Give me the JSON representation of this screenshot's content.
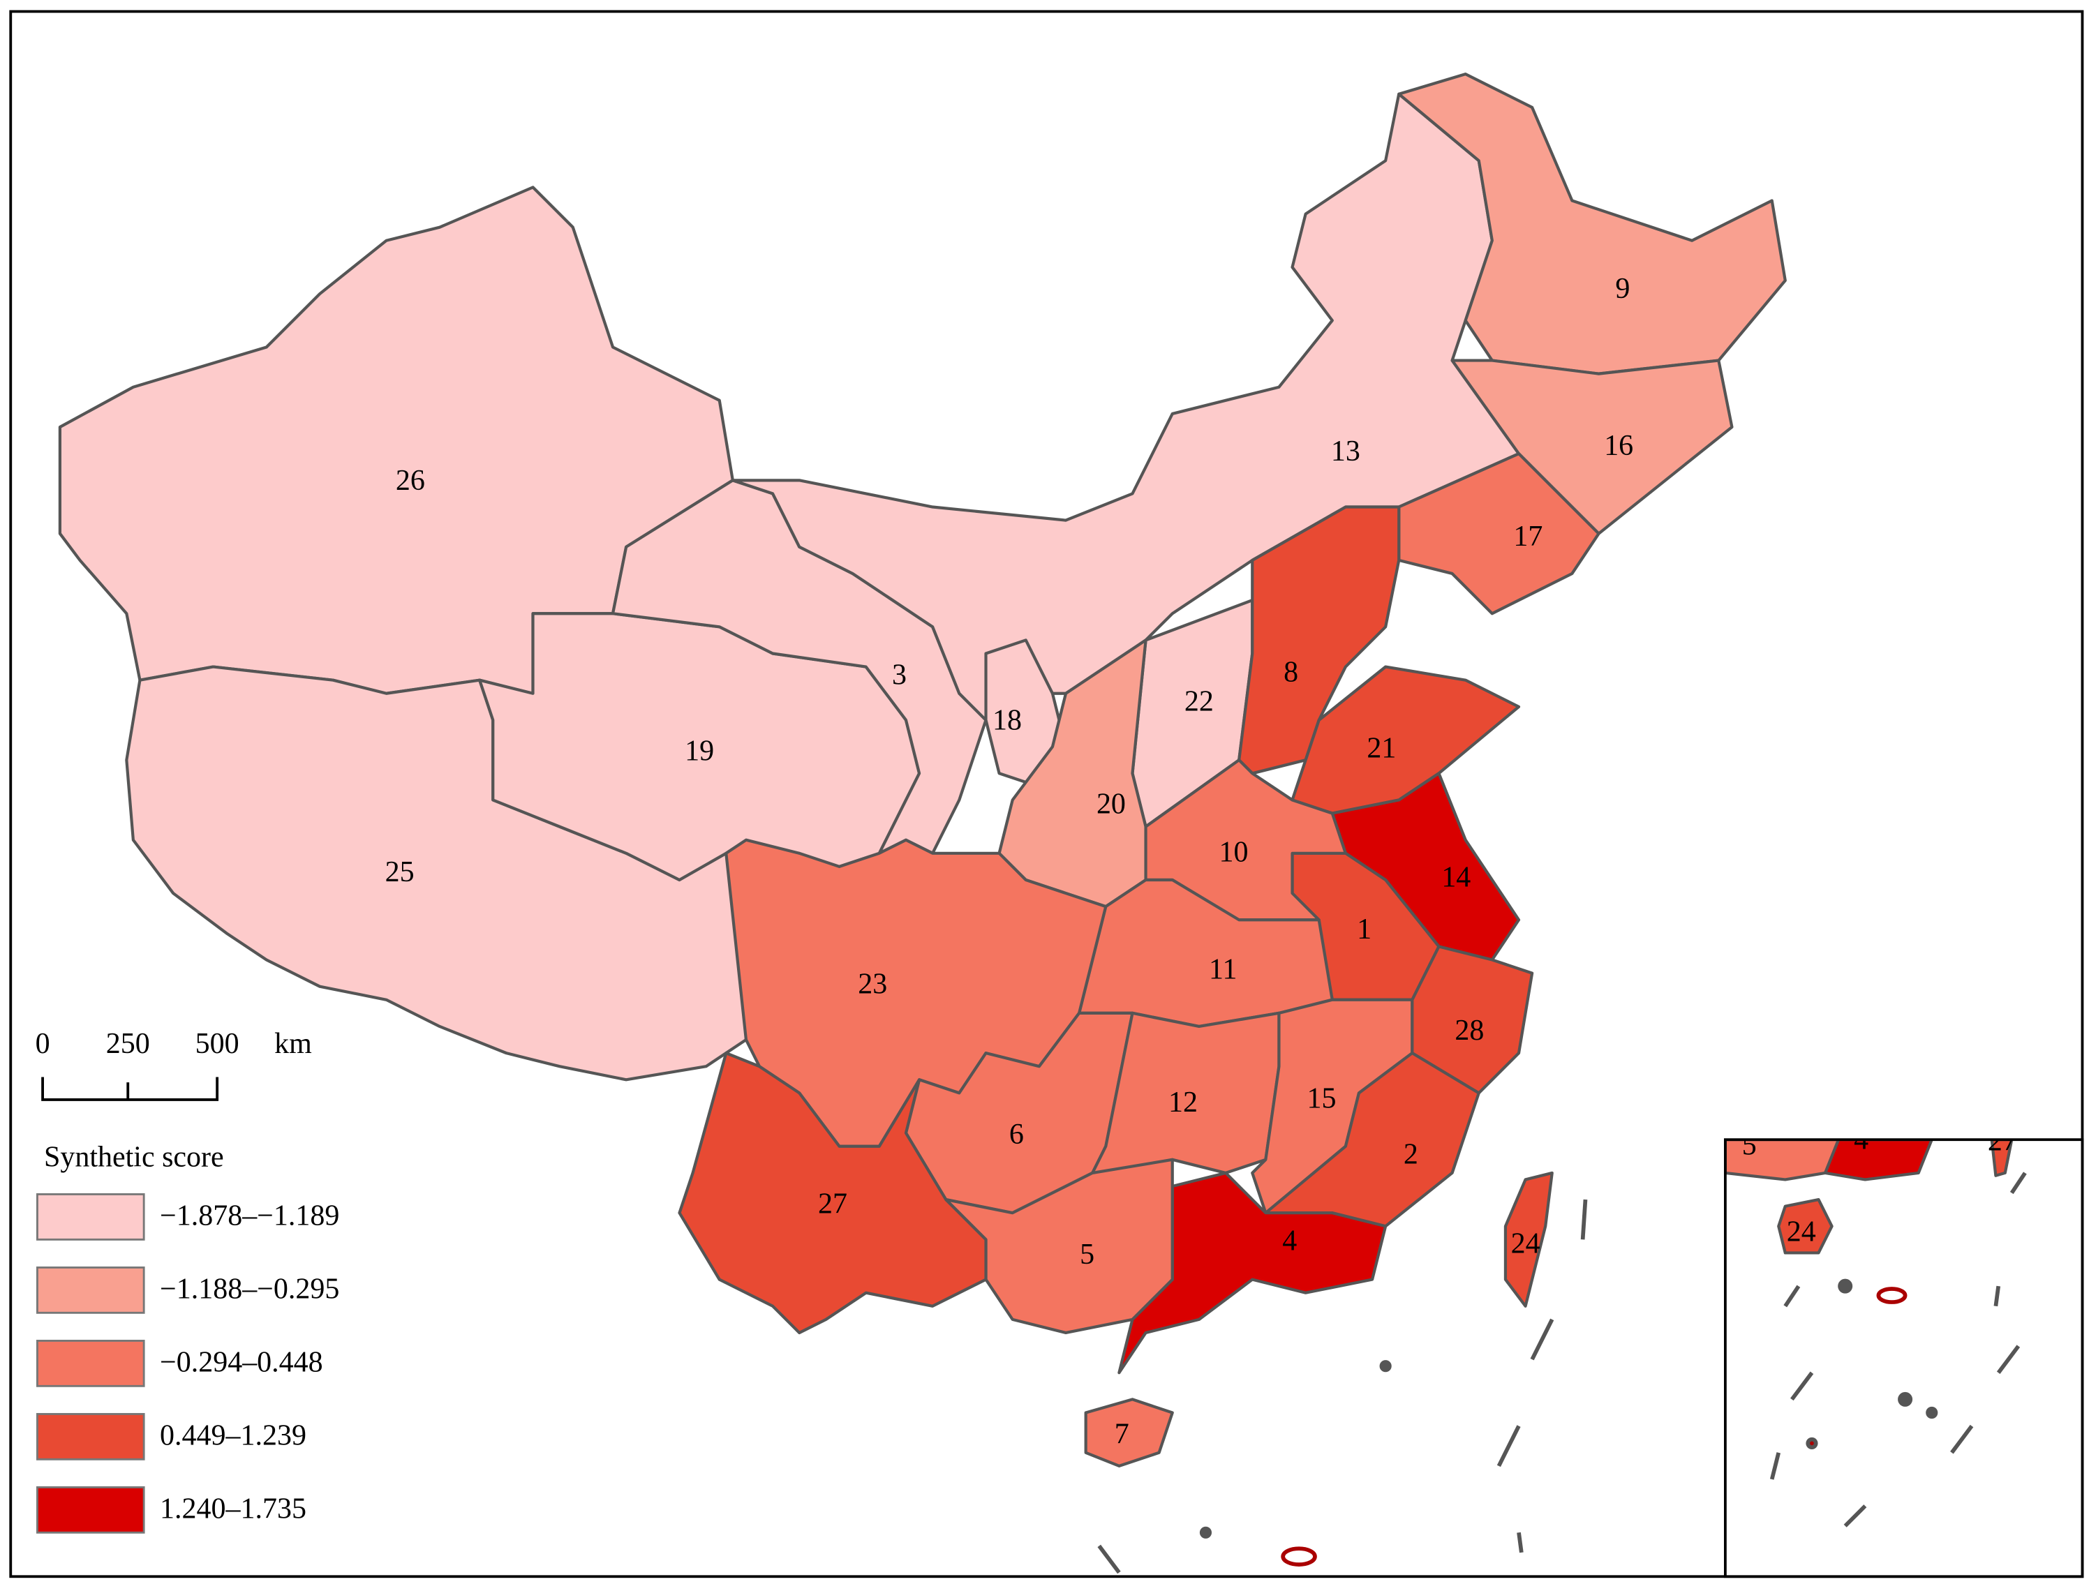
{
  "legend": {
    "title": "Synthetic score",
    "classes": [
      {
        "label": "−1.878–−1.189",
        "color": "#fdcbcb"
      },
      {
        "label": "−1.188–−0.295",
        "color": "#f9a090"
      },
      {
        "label": "−0.294–0.448",
        "color": "#f47560"
      },
      {
        "label": "0.449–1.239",
        "color": "#e84a33"
      },
      {
        "label": "1.240–1.735",
        "color": "#d90000"
      }
    ]
  },
  "scale_bar": {
    "labels": [
      "0",
      "250",
      "500"
    ],
    "unit": "km"
  },
  "regions": [
    {
      "label": "26",
      "color": "#fdcbcb"
    },
    {
      "label": "25",
      "color": "#fdcbcb"
    },
    {
      "label": "19",
      "color": "#fdcbcb"
    },
    {
      "label": "3",
      "color": "#fdcbcb"
    },
    {
      "label": "13",
      "color": "#fdcbcb"
    },
    {
      "label": "18",
      "color": "#fdcbcb"
    },
    {
      "label": "22",
      "color": "#fdcbcb"
    },
    {
      "label": "20",
      "color": "#f9a090"
    },
    {
      "label": "9",
      "color": "#f9a090"
    },
    {
      "label": "16",
      "color": "#f9a090"
    },
    {
      "label": "17",
      "color": "#f47560"
    },
    {
      "label": "8",
      "color": "#e84a33"
    },
    {
      "label": "21",
      "color": "#e84a33"
    },
    {
      "label": "14",
      "color": "#d90000"
    },
    {
      "label": "1",
      "color": "#e84a33"
    },
    {
      "label": "10",
      "color": "#f47560"
    },
    {
      "label": "11",
      "color": "#f47560"
    },
    {
      "label": "23",
      "color": "#f47560"
    },
    {
      "label": "6",
      "color": "#f47560"
    },
    {
      "label": "12",
      "color": "#f47560"
    },
    {
      "label": "15",
      "color": "#f47560"
    },
    {
      "label": "28",
      "color": "#e84a33"
    },
    {
      "label": "2",
      "color": "#e84a33"
    },
    {
      "label": "4",
      "color": "#d90000"
    },
    {
      "label": "5",
      "color": "#f47560"
    },
    {
      "label": "27",
      "color": "#e84a33"
    },
    {
      "label": "7",
      "color": "#f47560"
    },
    {
      "label": "24",
      "color": "#e84a33"
    }
  ]
}
